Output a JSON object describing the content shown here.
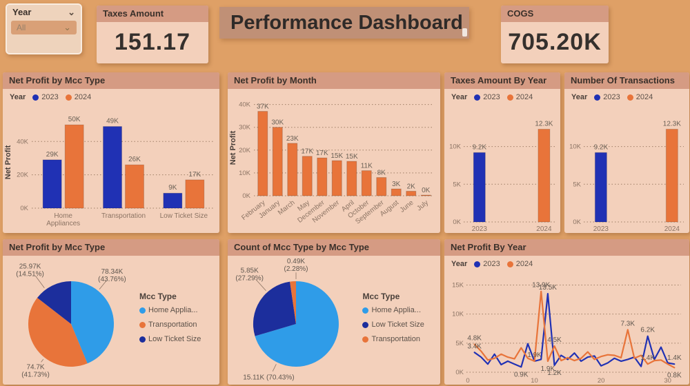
{
  "page": {
    "background": "#dfa066"
  },
  "topbar": {
    "slicer": {
      "field": "Year",
      "value": "All"
    },
    "taxes_card": {
      "title": "Taxes Amount",
      "value": "151.17"
    },
    "dashboard_title": "Performance Dashboard",
    "cogs_card": {
      "title": "COGS",
      "value": "705.20K"
    }
  },
  "colors": {
    "blue_2023": "#2031b4",
    "orange_2024": "#e8743a",
    "light_blue": "#2f9ce8",
    "dark_blue": "#1c2e9c"
  },
  "chart_data": [
    {
      "id": "net-profit-by-mcc-type-bar",
      "type": "bar",
      "title": "Net Profit by Mcc Type",
      "ylabel": "Net Profit",
      "ylim": [
        0,
        55
      ],
      "yticks": [
        {
          "v": 0,
          "label": "0K"
        },
        {
          "v": 20,
          "label": "20K"
        },
        {
          "v": 40,
          "label": "40K"
        }
      ],
      "legend": {
        "label": "Year",
        "items": [
          {
            "label": "2023",
            "color": "#2031b4"
          },
          {
            "label": "2024",
            "color": "#e8743a"
          }
        ]
      },
      "categories": [
        [
          "Home",
          "Appliances"
        ],
        [
          "Transportation"
        ],
        [
          "Low Ticket Size"
        ]
      ],
      "series": [
        {
          "name": "2023",
          "color": "#2031b4",
          "values": [
            29,
            49,
            9
          ],
          "labels": [
            "29K",
            "49K",
            "9K"
          ]
        },
        {
          "name": "2024",
          "color": "#e8743a",
          "values": [
            50,
            26,
            17
          ],
          "labels": [
            "50K",
            "26K",
            "17K"
          ]
        }
      ]
    },
    {
      "id": "net-profit-by-month",
      "type": "bar",
      "title": "Net Profit by Month",
      "ylabel": "Net Profit",
      "ylim": [
        0,
        42
      ],
      "yticks": [
        {
          "v": 0,
          "label": "0K"
        },
        {
          "v": 10,
          "label": "10K"
        },
        {
          "v": 20,
          "label": "20K"
        },
        {
          "v": 30,
          "label": "30K"
        },
        {
          "v": 40,
          "label": "40K"
        }
      ],
      "categories": [
        "February",
        "January",
        "March",
        "May",
        "December",
        "November",
        "April",
        "October",
        "September",
        "August",
        "June",
        "July"
      ],
      "values": [
        37,
        30,
        23,
        17.3,
        16.6,
        15.4,
        15.1,
        11,
        8,
        3,
        2,
        0.3
      ],
      "labels": [
        "37K",
        "30K",
        "23K",
        "17K",
        "17K",
        "15K",
        "15K",
        "11K",
        "8K",
        "3K",
        "2K",
        "0K"
      ],
      "bar_color": "#e8743a"
    },
    {
      "id": "taxes-amount-by-year",
      "type": "bar",
      "title": "Taxes Amount By Year",
      "ylim": [
        0,
        13.8
      ],
      "yticks": [
        {
          "v": 0,
          "label": "0K"
        },
        {
          "v": 5,
          "label": "5K"
        },
        {
          "v": 10,
          "label": "10K"
        }
      ],
      "legend": {
        "label": "Year",
        "items": [
          {
            "label": "2023",
            "color": "#2031b4"
          },
          {
            "label": "2024",
            "color": "#e8743a"
          }
        ]
      },
      "categories": [
        "2023",
        "2024"
      ],
      "values": [
        9.2,
        12.3
      ],
      "labels": [
        "9.2K",
        "12.3K"
      ],
      "bar_colors": [
        "#2031b4",
        "#e8743a"
      ]
    },
    {
      "id": "number-of-transactions",
      "type": "bar",
      "title": "Number Of Transactions",
      "ylim": [
        0,
        13.8
      ],
      "yticks": [
        {
          "v": 0,
          "label": "0K"
        },
        {
          "v": 5,
          "label": "5K"
        },
        {
          "v": 10,
          "label": "10K"
        }
      ],
      "legend": {
        "label": "Year",
        "items": [
          {
            "label": "2023",
            "color": "#2031b4"
          },
          {
            "label": "2024",
            "color": "#e8743a"
          }
        ]
      },
      "categories": [
        "2023",
        "2024"
      ],
      "values": [
        9.2,
        12.3
      ],
      "labels": [
        "9.2K",
        "12.3K"
      ],
      "bar_colors": [
        "#2031b4",
        "#e8743a"
      ]
    },
    {
      "id": "net-profit-by-mcc-type-pie",
      "type": "pie",
      "title": "Net Profit by Mcc Type",
      "legend_title": "Mcc Type",
      "slices": [
        {
          "name": "Home Applia...",
          "value": "78.34K",
          "pct": 43.76,
          "color": "#2f9ce8",
          "label_lines": [
            "78.34K",
            "(43.76%)"
          ],
          "label_pos": [
            0.8,
            0.14
          ]
        },
        {
          "name": "Transportation",
          "value": "74.7K",
          "pct": 41.73,
          "color": "#e8743a",
          "label_lines": [
            "74.7K",
            "(41.73%)"
          ],
          "label_pos": [
            0.24,
            0.88
          ]
        },
        {
          "name": "Low Ticket Size",
          "value": "25.97K",
          "pct": 14.51,
          "color": "#1c2e9c",
          "label_lines": [
            "25.97K",
            "(14.51%)"
          ],
          "label_pos": [
            0.2,
            0.1
          ]
        }
      ]
    },
    {
      "id": "count-of-mcc-type-by-mcc-type-pie",
      "type": "pie",
      "title": "Count of Mcc Type by Mcc Type",
      "legend_title": "Mcc Type",
      "slices": [
        {
          "name": "Home Applia...",
          "value": "15.11K",
          "pct": 70.43,
          "color": "#2f9ce8",
          "label_lines": [
            "15.11K (70.43%)"
          ],
          "label_pos": [
            0.3,
            0.96
          ]
        },
        {
          "name": "Low Ticket Size",
          "value": "5.85K",
          "pct": 27.29,
          "color": "#1c2e9c",
          "label_lines": [
            "5.85K",
            "(27.29%)"
          ],
          "label_pos": [
            0.16,
            0.13
          ]
        },
        {
          "name": "Transportation",
          "value": "0.49K",
          "pct": 2.28,
          "color": "#e8743a",
          "label_lines": [
            "0.49K",
            "(2.28%)"
          ],
          "label_pos": [
            0.5,
            0.06
          ]
        }
      ]
    },
    {
      "id": "net-profit-by-year-line",
      "type": "line",
      "title": "Net Profit By Year",
      "xlim": [
        0,
        32
      ],
      "xticks": [
        {
          "v": 0,
          "label": "0"
        },
        {
          "v": 10,
          "label": "10"
        },
        {
          "v": 20,
          "label": "20"
        },
        {
          "v": 30,
          "label": "30"
        }
      ],
      "ylim": [
        0,
        16
      ],
      "yticks": [
        {
          "v": 0,
          "label": "0K"
        },
        {
          "v": 5,
          "label": "5K"
        },
        {
          "v": 10,
          "label": "10K"
        },
        {
          "v": 15,
          "label": "15K"
        }
      ],
      "legend": {
        "label": "Year",
        "items": [
          {
            "label": "2023",
            "color": "#2031b4"
          },
          {
            "label": "2024",
            "color": "#e8743a"
          }
        ]
      },
      "series": [
        {
          "name": "2023",
          "color": "#2031b4",
          "points": [
            {
              "x": 1,
              "v": 3.4,
              "l": "3.4K"
            },
            {
              "x": 2,
              "v": 2.6
            },
            {
              "x": 3,
              "v": 1.4
            },
            {
              "x": 4,
              "v": 3.1
            },
            {
              "x": 5,
              "v": 1.3
            },
            {
              "x": 6,
              "v": 1.9
            },
            {
              "x": 7,
              "v": 1.4
            },
            {
              "x": 8,
              "v": 0.9,
              "l": "0.9K",
              "b": true
            },
            {
              "x": 9,
              "v": 4.9
            },
            {
              "x": 10,
              "v": 1.9,
              "l": "1.9K"
            },
            {
              "x": 11,
              "v": 2.2
            },
            {
              "x": 12,
              "v": 13.5,
              "l": "13.5K"
            },
            {
              "x": 13,
              "v": 1.2,
              "l": "1.2K",
              "b": true
            },
            {
              "x": 14,
              "v": 2.9
            },
            {
              "x": 15,
              "v": 2.2
            },
            {
              "x": 16,
              "v": 3.3
            },
            {
              "x": 17,
              "v": 1.9
            },
            {
              "x": 18,
              "v": 2.6
            },
            {
              "x": 19,
              "v": 2.8
            },
            {
              "x": 20,
              "v": 1.1
            },
            {
              "x": 21,
              "v": 1.6
            },
            {
              "x": 22,
              "v": 2.4
            },
            {
              "x": 23,
              "v": 1.9
            },
            {
              "x": 24,
              "v": 2.2
            },
            {
              "x": 25,
              "v": 2.6
            },
            {
              "x": 26,
              "v": 1.0
            },
            {
              "x": 27,
              "v": 6.2,
              "l": "6.2K"
            },
            {
              "x": 28,
              "v": 2.2
            },
            {
              "x": 29,
              "v": 4.3
            },
            {
              "x": 30,
              "v": 1.6
            },
            {
              "x": 31,
              "v": 1.4,
              "l": "1.4K"
            }
          ]
        },
        {
          "name": "2024",
          "color": "#e8743a",
          "points": [
            {
              "x": 1,
              "v": 4.8,
              "l": "4.8K"
            },
            {
              "x": 2,
              "v": 3.6
            },
            {
              "x": 3,
              "v": 2.1
            },
            {
              "x": 4,
              "v": 2.4
            },
            {
              "x": 5,
              "v": 3.1
            },
            {
              "x": 6,
              "v": 2.6
            },
            {
              "x": 7,
              "v": 2.3
            },
            {
              "x": 8,
              "v": 4.2
            },
            {
              "x": 9,
              "v": 2.4
            },
            {
              "x": 10,
              "v": 1.9
            },
            {
              "x": 11,
              "v": 13.9,
              "l": "13.9K"
            },
            {
              "x": 12,
              "v": 1.9,
              "l": "1.9K",
              "b": true
            },
            {
              "x": 13,
              "v": 4.5,
              "l": "4.5K"
            },
            {
              "x": 14,
              "v": 2.0
            },
            {
              "x": 15,
              "v": 2.5
            },
            {
              "x": 16,
              "v": 2.0
            },
            {
              "x": 17,
              "v": 2.4
            },
            {
              "x": 18,
              "v": 3.5
            },
            {
              "x": 19,
              "v": 2.2
            },
            {
              "x": 20,
              "v": 2.7
            },
            {
              "x": 21,
              "v": 3.0
            },
            {
              "x": 22,
              "v": 2.9
            },
            {
              "x": 23,
              "v": 2.5
            },
            {
              "x": 24,
              "v": 7.3,
              "l": "7.3K"
            },
            {
              "x": 25,
              "v": 2.4
            },
            {
              "x": 26,
              "v": 2.9
            },
            {
              "x": 27,
              "v": 1.4,
              "l": "1.4K"
            },
            {
              "x": 28,
              "v": 2.0
            },
            {
              "x": 29,
              "v": 2.1
            },
            {
              "x": 30,
              "v": 1.4
            },
            {
              "x": 31,
              "v": 0.8,
              "l": "0.8K",
              "b": true
            }
          ]
        }
      ]
    }
  ]
}
